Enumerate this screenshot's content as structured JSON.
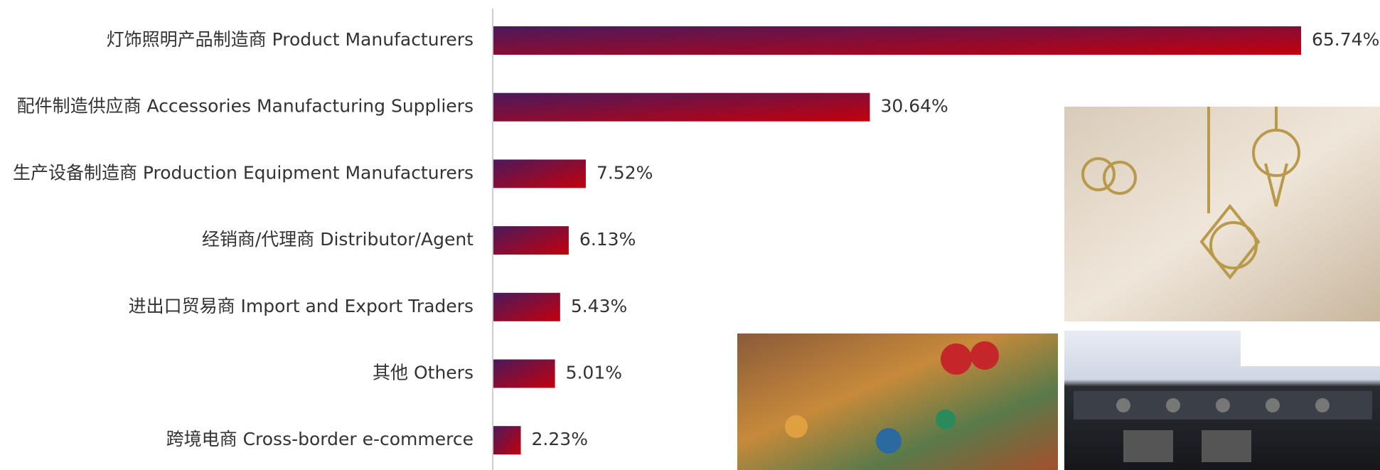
{
  "chart_data": {
    "type": "bar",
    "orientation": "horizontal",
    "categories": [
      "灯饰照明产品制造商 Product Manufacturers",
      "配件制造供应商 Accessories Manufacturing Suppliers",
      "生产设备制造商 Production Equipment Manufacturers",
      "经销商/代理商 Distributor/Agent",
      "进出口贸易商 Import and Export Traders",
      "其他 Others",
      "跨境电商 Cross-border e-commerce"
    ],
    "values": [
      65.74,
      30.64,
      7.52,
      6.13,
      5.43,
      5.01,
      2.23
    ],
    "value_labels": [
      "65.74%",
      "30.64%",
      "7.52%",
      "6.13%",
      "5.43%",
      "5.01%",
      "2.23%"
    ],
    "color": [
      "#4a1a5c",
      "#c4000c"
    ]
  }
}
